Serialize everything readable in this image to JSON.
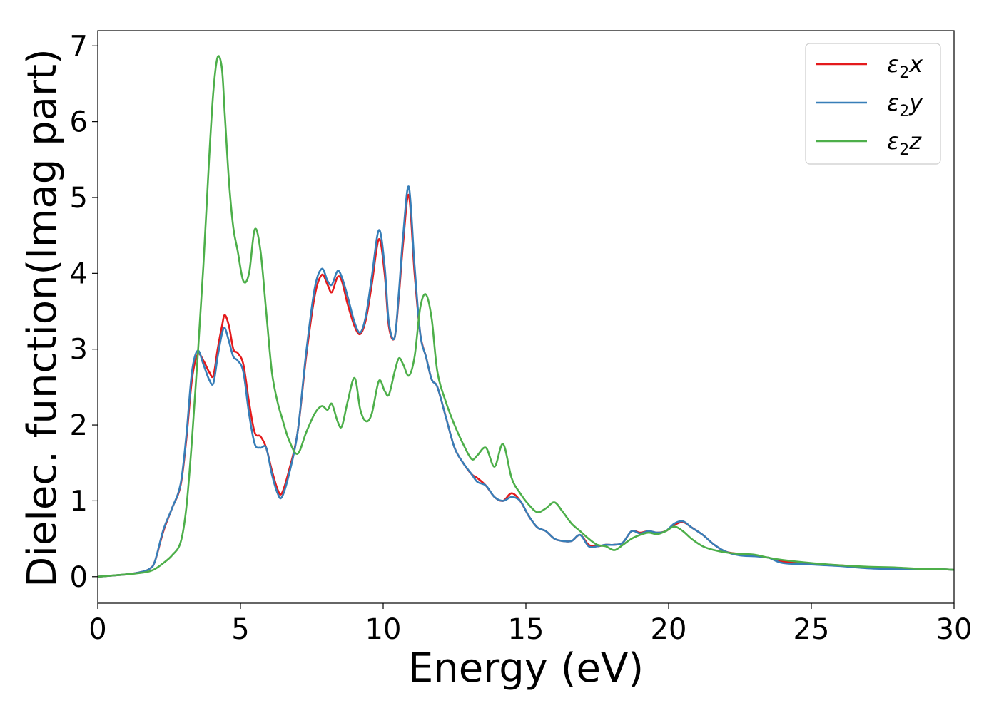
{
  "chart_data": {
    "type": "line",
    "title": "",
    "xlabel": "Energy (eV)",
    "ylabel": "Dielec. function(Imag part)",
    "xlim": [
      0,
      30
    ],
    "ylim": [
      -0.35,
      7.2
    ],
    "xticks": [
      "0",
      "5",
      "10",
      "15",
      "20",
      "25",
      "30"
    ],
    "yticks": [
      "0",
      "1",
      "2",
      "3",
      "4",
      "5",
      "6",
      "7"
    ],
    "grid": false,
    "legend_position": "top-right",
    "series": [
      {
        "name": "ε₂x",
        "legend_base": "ε",
        "legend_sub": "2",
        "legend_var": "x",
        "color": "#e41a1c",
        "x": [
          0,
          1,
          1.5,
          1.8,
          2,
          2.3,
          2.6,
          2.9,
          3.1,
          3.3,
          3.5,
          3.7,
          3.9,
          4.05,
          4.2,
          4.35,
          4.45,
          4.6,
          4.75,
          4.9,
          5.1,
          5.3,
          5.5,
          5.7,
          5.9,
          6.1,
          6.3,
          6.45,
          6.7,
          7.0,
          7.3,
          7.6,
          7.85,
          8.05,
          8.2,
          8.4,
          8.55,
          8.75,
          9.0,
          9.2,
          9.4,
          9.6,
          9.85,
          10.05,
          10.2,
          10.4,
          10.55,
          10.7,
          10.9,
          11.1,
          11.3,
          11.5,
          11.7,
          11.9,
          12.2,
          12.5,
          12.8,
          13.1,
          13.3,
          13.6,
          13.9,
          14.2,
          14.5,
          14.8,
          15.1,
          15.4,
          15.7,
          16.0,
          16.3,
          16.6,
          16.9,
          17.2,
          17.5,
          17.8,
          18.1,
          18.4,
          18.7,
          19.0,
          19.3,
          19.6,
          19.9,
          20.2,
          20.5,
          20.8,
          21.2,
          21.6,
          22.0,
          22.5,
          23.0,
          23.5,
          24.0,
          25.0,
          26.0,
          27.0,
          28.0,
          29.0,
          29.5,
          30.0
        ],
        "y": [
          0,
          0.03,
          0.06,
          0.1,
          0.2,
          0.6,
          0.9,
          1.2,
          1.8,
          2.6,
          2.93,
          2.85,
          2.7,
          2.65,
          3.0,
          3.3,
          3.45,
          3.3,
          3.0,
          2.95,
          2.8,
          2.3,
          1.9,
          1.85,
          1.7,
          1.4,
          1.15,
          1.1,
          1.4,
          1.9,
          2.9,
          3.7,
          3.98,
          3.85,
          3.75,
          3.95,
          3.9,
          3.6,
          3.3,
          3.2,
          3.4,
          3.85,
          4.45,
          4.0,
          3.3,
          3.15,
          3.7,
          4.4,
          5.03,
          4.0,
          3.2,
          2.9,
          2.6,
          2.5,
          2.1,
          1.7,
          1.5,
          1.35,
          1.3,
          1.2,
          1.05,
          1.0,
          1.1,
          1.0,
          0.8,
          0.65,
          0.6,
          0.5,
          0.47,
          0.47,
          0.55,
          0.42,
          0.4,
          0.42,
          0.42,
          0.45,
          0.6,
          0.58,
          0.6,
          0.58,
          0.6,
          0.68,
          0.72,
          0.65,
          0.55,
          0.42,
          0.33,
          0.3,
          0.28,
          0.25,
          0.2,
          0.17,
          0.15,
          0.12,
          0.1,
          0.1,
          0.1,
          0.09
        ]
      },
      {
        "name": "ε₂y",
        "legend_base": "ε",
        "legend_sub": "2",
        "legend_var": "y",
        "color": "#377eb8",
        "x": [
          0,
          1,
          1.5,
          1.8,
          2,
          2.3,
          2.6,
          2.9,
          3.1,
          3.3,
          3.5,
          3.7,
          3.9,
          4.05,
          4.2,
          4.35,
          4.45,
          4.6,
          4.75,
          4.9,
          5.1,
          5.3,
          5.5,
          5.7,
          5.9,
          6.1,
          6.3,
          6.45,
          6.7,
          7.0,
          7.3,
          7.6,
          7.85,
          8.05,
          8.2,
          8.4,
          8.55,
          8.75,
          9.0,
          9.2,
          9.4,
          9.6,
          9.85,
          10.05,
          10.2,
          10.4,
          10.55,
          10.7,
          10.9,
          11.1,
          11.3,
          11.5,
          11.7,
          11.9,
          12.2,
          12.5,
          12.8,
          13.1,
          13.3,
          13.6,
          13.9,
          14.2,
          14.5,
          14.8,
          15.1,
          15.4,
          15.7,
          16.0,
          16.3,
          16.6,
          16.9,
          17.2,
          17.5,
          17.8,
          18.1,
          18.4,
          18.7,
          19.0,
          19.3,
          19.6,
          19.9,
          20.2,
          20.5,
          20.8,
          21.2,
          21.6,
          22.0,
          22.5,
          23.0,
          23.5,
          24.0,
          25.0,
          26.0,
          27.0,
          28.0,
          29.0,
          29.5,
          30.0
        ],
        "y": [
          0,
          0.03,
          0.06,
          0.1,
          0.2,
          0.62,
          0.9,
          1.22,
          1.85,
          2.7,
          2.98,
          2.8,
          2.6,
          2.55,
          2.9,
          3.2,
          3.28,
          3.1,
          2.9,
          2.85,
          2.7,
          2.15,
          1.75,
          1.7,
          1.7,
          1.35,
          1.1,
          1.05,
          1.35,
          1.9,
          2.95,
          3.8,
          4.06,
          3.9,
          3.85,
          4.03,
          3.95,
          3.7,
          3.35,
          3.22,
          3.45,
          3.95,
          4.57,
          4.1,
          3.35,
          3.15,
          3.75,
          4.5,
          5.14,
          4.1,
          3.2,
          2.9,
          2.6,
          2.5,
          2.1,
          1.7,
          1.5,
          1.35,
          1.25,
          1.2,
          1.05,
          1.0,
          1.05,
          1.0,
          0.8,
          0.65,
          0.6,
          0.5,
          0.47,
          0.47,
          0.55,
          0.4,
          0.4,
          0.42,
          0.42,
          0.45,
          0.6,
          0.57,
          0.6,
          0.58,
          0.6,
          0.7,
          0.73,
          0.65,
          0.55,
          0.42,
          0.33,
          0.28,
          0.27,
          0.25,
          0.18,
          0.16,
          0.14,
          0.11,
          0.1,
          0.1,
          0.1,
          0.09
        ]
      },
      {
        "name": "ε₂z",
        "legend_base": "ε",
        "legend_sub": "2",
        "legend_var": "z",
        "color": "#4daf4a",
        "x": [
          0,
          1,
          1.5,
          1.8,
          2,
          2.3,
          2.6,
          2.9,
          3.1,
          3.3,
          3.5,
          3.7,
          3.9,
          4.05,
          4.2,
          4.35,
          4.45,
          4.6,
          4.75,
          4.9,
          5.1,
          5.3,
          5.5,
          5.7,
          5.9,
          6.1,
          6.3,
          6.45,
          6.7,
          7.0,
          7.3,
          7.6,
          7.85,
          8.05,
          8.2,
          8.4,
          8.55,
          8.75,
          9.0,
          9.2,
          9.4,
          9.6,
          9.85,
          10.05,
          10.2,
          10.4,
          10.55,
          10.7,
          10.9,
          11.1,
          11.3,
          11.5,
          11.7,
          11.9,
          12.2,
          12.5,
          12.8,
          13.1,
          13.3,
          13.6,
          13.9,
          14.2,
          14.5,
          14.8,
          15.1,
          15.4,
          15.7,
          16.0,
          16.3,
          16.6,
          16.9,
          17.2,
          17.5,
          17.8,
          18.1,
          18.4,
          18.7,
          19.0,
          19.3,
          19.6,
          19.9,
          20.2,
          20.5,
          20.8,
          21.2,
          21.6,
          22.0,
          22.5,
          23.0,
          23.5,
          24.0,
          25.0,
          26.0,
          27.0,
          28.0,
          29.0,
          29.5,
          30.0
        ],
        "y": [
          0,
          0.03,
          0.05,
          0.07,
          0.1,
          0.18,
          0.28,
          0.45,
          0.9,
          1.8,
          2.9,
          4.1,
          5.5,
          6.4,
          6.85,
          6.7,
          6.1,
          5.2,
          4.6,
          4.3,
          3.9,
          4.0,
          4.58,
          4.3,
          3.5,
          2.7,
          2.3,
          2.1,
          1.8,
          1.62,
          1.9,
          2.15,
          2.25,
          2.2,
          2.28,
          2.05,
          1.98,
          2.3,
          2.62,
          2.2,
          2.05,
          2.15,
          2.58,
          2.45,
          2.4,
          2.7,
          2.88,
          2.8,
          2.65,
          2.9,
          3.55,
          3.72,
          3.4,
          2.7,
          2.3,
          2.0,
          1.75,
          1.55,
          1.6,
          1.7,
          1.45,
          1.75,
          1.3,
          1.1,
          0.95,
          0.85,
          0.9,
          0.98,
          0.85,
          0.7,
          0.6,
          0.5,
          0.42,
          0.4,
          0.35,
          0.42,
          0.5,
          0.55,
          0.58,
          0.56,
          0.6,
          0.66,
          0.6,
          0.5,
          0.4,
          0.35,
          0.32,
          0.3,
          0.29,
          0.25,
          0.22,
          0.18,
          0.15,
          0.13,
          0.12,
          0.1,
          0.1,
          0.09
        ]
      }
    ]
  }
}
